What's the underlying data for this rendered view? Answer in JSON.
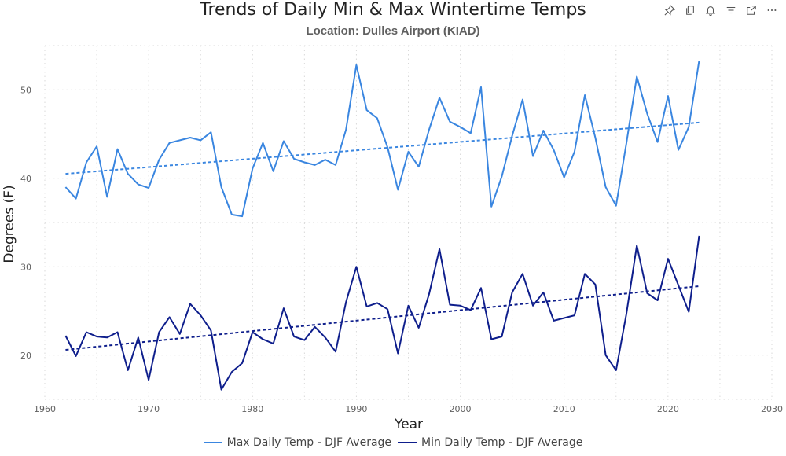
{
  "toolbar": {
    "icons": [
      "pin-icon",
      "copy-icon",
      "bell-icon",
      "filter-icon",
      "expand-icon",
      "more-icon"
    ]
  },
  "colors": {
    "max": "#3a86e0",
    "min": "#0e1e8c",
    "grid": "#d9d9d9",
    "tick": "#606060"
  },
  "chart_data": {
    "type": "line",
    "title": "Trends of Daily Min & Max Wintertime Temps",
    "subtitle": "Location: Dulles Airport (KIAD)",
    "xlabel": "Year",
    "ylabel": "Degrees (F)",
    "xlim": [
      1960,
      2030
    ],
    "ylim": [
      15,
      55
    ],
    "xticks": [
      1960,
      1970,
      1980,
      1990,
      2000,
      2010,
      2020,
      2030
    ],
    "yticks": [
      20,
      30,
      40,
      50
    ],
    "grid": true,
    "legend_position": "bottom",
    "x": [
      1962,
      1963,
      1964,
      1965,
      1966,
      1967,
      1968,
      1969,
      1970,
      1971,
      1972,
      1973,
      1974,
      1975,
      1976,
      1977,
      1978,
      1979,
      1980,
      1981,
      1982,
      1983,
      1984,
      1985,
      1986,
      1987,
      1988,
      1989,
      1990,
      1991,
      1992,
      1993,
      1994,
      1995,
      1996,
      1997,
      1998,
      1999,
      2000,
      2001,
      2002,
      2003,
      2004,
      2005,
      2006,
      2007,
      2008,
      2009,
      2010,
      2011,
      2012,
      2013,
      2014,
      2015,
      2016,
      2017,
      2018,
      2019,
      2020,
      2021,
      2022,
      2023
    ],
    "series": [
      {
        "name": "Max Daily Temp - DJF Average",
        "values": [
          39.0,
          37.7,
          41.8,
          43.6,
          37.9,
          43.3,
          40.5,
          39.3,
          38.9,
          42.1,
          44.0,
          44.3,
          44.6,
          44.3,
          45.2,
          39.0,
          35.9,
          35.7,
          41.1,
          44.0,
          40.8,
          44.2,
          42.2,
          41.8,
          41.5,
          42.1,
          41.5,
          45.5,
          52.8,
          47.7,
          46.8,
          43.5,
          38.7,
          43.0,
          41.3,
          45.5,
          49.1,
          46.4,
          45.8,
          45.1,
          50.3,
          36.8,
          40.2,
          44.8,
          48.9,
          42.5,
          45.4,
          43.2,
          40.1,
          43.0,
          49.4,
          44.6,
          39.0,
          36.9,
          44.0,
          51.5,
          47.3,
          44.1,
          49.3,
          43.2,
          45.8,
          53.3
        ],
        "trend": [
          40.5,
          46.3
        ]
      },
      {
        "name": "Min Daily Temp - DJF Average",
        "values": [
          22.2,
          19.9,
          22.6,
          22.1,
          22.0,
          22.6,
          18.3,
          22.0,
          17.2,
          22.6,
          24.3,
          22.4,
          25.8,
          24.5,
          22.8,
          16.1,
          18.1,
          19.1,
          22.6,
          21.8,
          21.3,
          25.3,
          22.1,
          21.7,
          23.2,
          22.0,
          20.4,
          26.0,
          30.0,
          25.5,
          25.9,
          25.2,
          20.2,
          25.6,
          23.1,
          26.9,
          32.0,
          25.7,
          25.6,
          25.1,
          27.6,
          21.8,
          22.1,
          27.1,
          29.2,
          25.6,
          27.1,
          23.9,
          24.2,
          24.5,
          29.2,
          28.0,
          20.0,
          18.3,
          24.7,
          32.4,
          27.0,
          26.2,
          30.9,
          27.9,
          24.9,
          33.5
        ],
        "trend": [
          20.6,
          27.8
        ]
      }
    ]
  }
}
